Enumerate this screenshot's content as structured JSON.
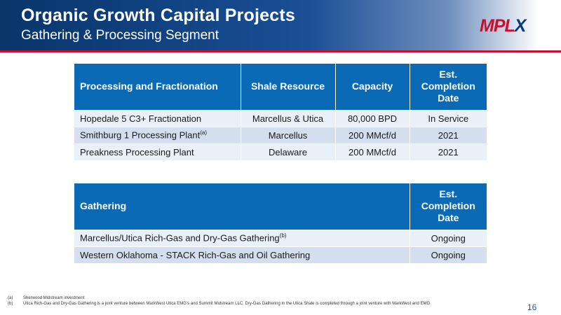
{
  "header": {
    "title": "Organic Growth Capital Projects",
    "subtitle": "Gathering & Processing Segment",
    "logo": {
      "main": "MPL",
      "accent": "X",
      "colors": {
        "red": "#c8102e",
        "blue": "#0b3a73"
      }
    }
  },
  "processing_table": {
    "headers": [
      "Processing and Fractionation",
      "Shale Resource",
      "Capacity",
      "Est. Completion Date"
    ],
    "rows": [
      {
        "project": "Hopedale 5 C3+ Fractionation",
        "note": "",
        "resource": "Marcellus & Utica",
        "capacity": "80,000 BPD",
        "date": "In Service"
      },
      {
        "project": "Smithburg 1 Processing Plant",
        "note": "(a)",
        "resource": "Marcellus",
        "capacity": "200 MMcf/d",
        "date": "2021"
      },
      {
        "project": "Preakness Processing Plant",
        "note": "",
        "resource": "Delaware",
        "capacity": "200 MMcf/d",
        "date": "2021"
      }
    ]
  },
  "gathering_table": {
    "headers": [
      "Gathering",
      "Est. Completion Date"
    ],
    "rows": [
      {
        "project": "Marcellus/Utica Rich-Gas and Dry-Gas Gathering",
        "note": "(b)",
        "date": "Ongoing"
      },
      {
        "project": "Western Oklahoma - STACK Rich-Gas and Oil Gathering",
        "note": "",
        "date": "Ongoing"
      }
    ]
  },
  "footnotes": [
    {
      "key": "(a)",
      "text": "Sherwood Midstream investment"
    },
    {
      "key": "(b)",
      "text": "Utica Rich-Gas and Dry-Gas Gathering is a joint venture between MarkWest Utica EMG's and Summit Midstream LLC. Dry-Gas Gathering in the Utica Shale is completed through a joint venture with MarkWest and EMG"
    }
  ],
  "page_number": "16",
  "colors": {
    "header_blue": "#08356a",
    "table_header": "#0a6ab6",
    "row_odd": "#d3dfee",
    "row_even": "#eaf0f7",
    "accent_red": "#c8102e"
  }
}
